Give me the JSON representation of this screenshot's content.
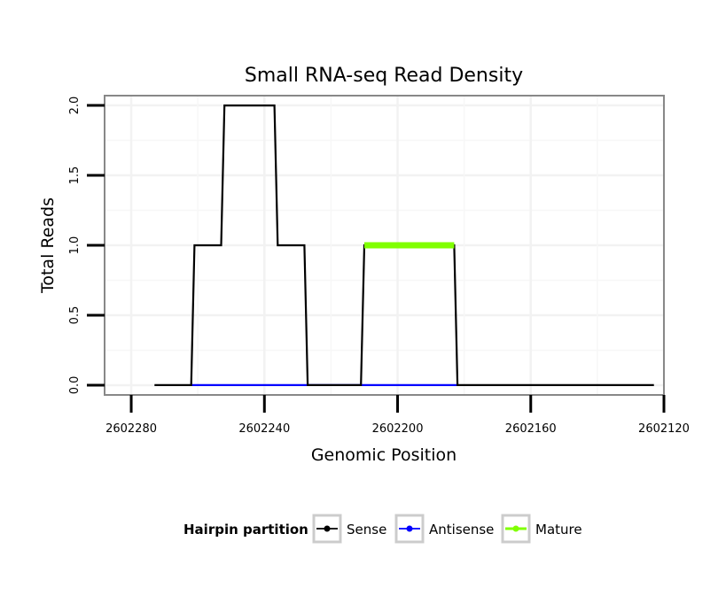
{
  "chart_data": {
    "type": "line",
    "title": "Small RNA-seq Read Density",
    "xlabel": "Genomic Position",
    "ylabel": "Total Reads",
    "x_reversed": true,
    "xlim": [
      2602288,
      2602120
    ],
    "ylim": [
      -0.07,
      2.07
    ],
    "x_ticks": [
      2602280,
      2602240,
      2602200,
      2602160,
      2602120
    ],
    "x_tick_labels": [
      "2602280",
      "2602240",
      "2602200",
      "2602160",
      "2602120"
    ],
    "y_ticks": [
      0,
      0.5,
      1,
      1.5,
      2
    ],
    "y_tick_labels": [
      "0.0",
      "0.5",
      "1.0",
      "1.5",
      "2.0"
    ],
    "grid": true,
    "legend_position": "bottom",
    "legend_title": "Hairpin partition",
    "series": [
      {
        "name": "Sense",
        "color": "#000000",
        "x": [
          2602273,
          2602262,
          2602261,
          2602253,
          2602252,
          2602237,
          2602236,
          2602228,
          2602227,
          2602211,
          2602210,
          2602183,
          2602182,
          2602123
        ],
        "y": [
          0,
          0,
          1,
          1,
          2,
          2,
          1,
          1,
          0,
          0,
          1,
          1,
          0,
          0
        ]
      },
      {
        "name": "Antisense",
        "color": "#0000ff",
        "x": [
          2602262,
          2602227,
          2602211,
          2602182
        ],
        "y": [
          0,
          0,
          0,
          0
        ]
      },
      {
        "name": "Mature",
        "color": "#80ff00",
        "x": [
          2602210,
          2602183
        ],
        "y": [
          1,
          1
        ]
      }
    ]
  }
}
